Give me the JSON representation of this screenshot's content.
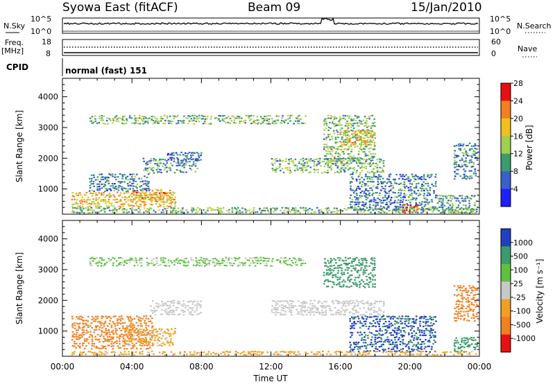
{
  "header": {
    "station": "Syowa East (fitACF)",
    "beam": "Beam 09",
    "date": "15/Jan/2010"
  },
  "noise_panel": {
    "left_label": "N.Sky",
    "right_label": "N.Search",
    "left_ticks": [
      "10^5",
      "10^0"
    ],
    "right_ticks": [
      "10^5",
      "10^0"
    ]
  },
  "freq_panel": {
    "left_label": "Freq.",
    "left_unit": "[MHz]",
    "right_label": "Nave",
    "left_ticks": [
      "18",
      "8"
    ],
    "right_ticks": [
      "60",
      "0"
    ]
  },
  "cpid": {
    "label": "CPID",
    "value": "normal (fast) 151"
  },
  "chart_data": [
    {
      "type": "heatmap",
      "name": "power",
      "ylabel": "Slant Range [km]",
      "y_ticks": [
        "1000",
        "2000",
        "3000",
        "4000"
      ],
      "ylim": [
        180,
        4600
      ],
      "colorbar": {
        "label": "Power [dB]",
        "ticks": [
          "4",
          "8",
          "12",
          "16",
          "20",
          "24",
          "28"
        ],
        "colors": [
          "#1f1fff",
          "#3a5fc8",
          "#3c9b6a",
          "#a0d050",
          "#f0c020",
          "#f08020",
          "#e81010"
        ]
      },
      "regions": [
        {
          "t0": 0.5,
          "t1": 23.8,
          "r0": 200,
          "r1": 400,
          "val": 14
        },
        {
          "t0": 0.5,
          "t1": 6.5,
          "r0": 400,
          "r1": 900,
          "val": 20
        },
        {
          "t0": 4.0,
          "t1": 6.3,
          "r0": 600,
          "r1": 1000,
          "val": 22
        },
        {
          "t0": 1.5,
          "t1": 5.0,
          "r0": 900,
          "r1": 1500,
          "val": 10
        },
        {
          "t0": 4.5,
          "t1": 7.8,
          "r0": 1500,
          "r1": 2000,
          "val": 12
        },
        {
          "t0": 6.0,
          "t1": 8.0,
          "r0": 1900,
          "r1": 2200,
          "val": 8
        },
        {
          "t0": 12.0,
          "t1": 18.5,
          "r0": 1500,
          "r1": 2000,
          "val": 14
        },
        {
          "t0": 15.0,
          "t1": 18.0,
          "r0": 1800,
          "r1": 3400,
          "val": 14
        },
        {
          "t0": 16.0,
          "t1": 18.0,
          "r0": 2400,
          "r1": 2900,
          "val": 20
        },
        {
          "t0": 16.5,
          "t1": 21.5,
          "r0": 300,
          "r1": 1500,
          "val": 10
        },
        {
          "t0": 19.5,
          "t1": 20.5,
          "r0": 200,
          "r1": 500,
          "val": 26
        },
        {
          "t0": 21.5,
          "t1": 23.9,
          "r0": 200,
          "r1": 800,
          "val": 12
        },
        {
          "t0": 22.5,
          "t1": 23.9,
          "r0": 1300,
          "r1": 2500,
          "val": 10
        },
        {
          "t0": 1.5,
          "t1": 14.0,
          "r0": 3100,
          "r1": 3400,
          "val": 14
        }
      ]
    },
    {
      "type": "heatmap",
      "name": "velocity",
      "ylabel": "Slant Range [km]",
      "y_ticks": [
        "1000",
        "2000",
        "3000",
        "4000"
      ],
      "ylim": [
        180,
        4600
      ],
      "colorbar": {
        "label": "Velocity [m s⁻¹]",
        "ticks": [
          "1000",
          "500",
          "100",
          "25",
          "-25",
          "-100",
          "-500",
          "-1000"
        ],
        "colors": [
          "#2040c0",
          "#3c9b6a",
          "#60c040",
          "#c8c8c8",
          "#f0a020",
          "#f08020",
          "#e81010"
        ]
      },
      "regions": [
        {
          "t0": 0.5,
          "t1": 5.2,
          "r0": 400,
          "r1": 1500,
          "val": -300
        },
        {
          "t0": 3.5,
          "t1": 6.5,
          "r0": 500,
          "r1": 1100,
          "val": -50
        },
        {
          "t0": 5.0,
          "t1": 8.0,
          "r0": 1500,
          "r1": 2000,
          "val": 0
        },
        {
          "t0": 12.0,
          "t1": 18.5,
          "r0": 1500,
          "r1": 2000,
          "val": 0
        },
        {
          "t0": 15.0,
          "t1": 18.0,
          "r0": 2400,
          "r1": 3400,
          "val": 200
        },
        {
          "t0": 16.5,
          "t1": 21.5,
          "r0": 300,
          "r1": 1500,
          "val": 600
        },
        {
          "t0": 22.5,
          "t1": 23.9,
          "r0": 300,
          "r1": 800,
          "val": 300
        },
        {
          "t0": 22.5,
          "t1": 23.9,
          "r0": 1300,
          "r1": 2500,
          "val": -200
        },
        {
          "t0": 0.5,
          "t1": 23.8,
          "r0": 200,
          "r1": 350,
          "val": -60
        },
        {
          "t0": 1.5,
          "t1": 14.0,
          "r0": 3100,
          "r1": 3400,
          "val": 40
        }
      ]
    }
  ],
  "x_axis": {
    "label": "Time UT",
    "ticks": [
      "00:00",
      "04:00",
      "08:00",
      "12:00",
      "16:00",
      "20:00",
      "00:00"
    ],
    "xlim_hours": [
      0,
      24
    ]
  }
}
